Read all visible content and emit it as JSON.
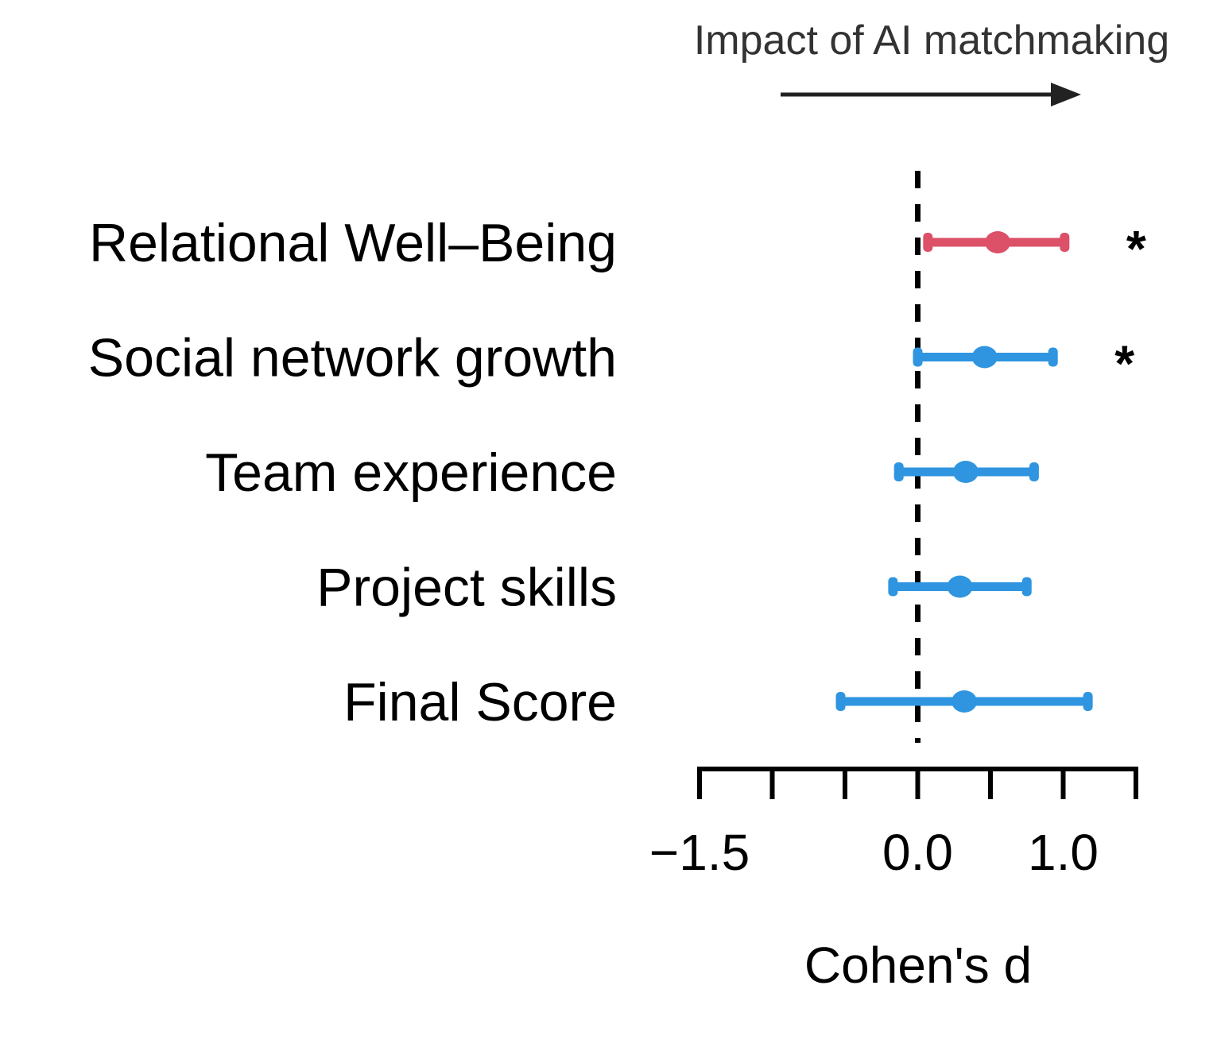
{
  "chart_data": {
    "type": "forest",
    "annotation": "Impact of AI matchmaking",
    "xlabel": "Cohen's d",
    "xlim": [
      -1.5,
      1.5
    ],
    "ticks": [
      -1.5,
      -1.0,
      -0.5,
      0.0,
      0.5,
      1.0,
      1.5
    ],
    "tick_labels": [
      {
        "value": -1.5,
        "label": "−1.5"
      },
      {
        "value": 0.0,
        "label": "0.0"
      },
      {
        "value": 1.0,
        "label": "1.0"
      }
    ],
    "reference_line": 0.0,
    "grid": false,
    "colors": {
      "significant_highlight": "#dc5068",
      "default": "#2f95e0"
    },
    "rows": [
      {
        "label": "Relational Well–Being",
        "estimate": 0.55,
        "lower": 0.07,
        "upper": 1.01,
        "significance": "*",
        "color": "#dc5068"
      },
      {
        "label": "Social network growth",
        "estimate": 0.46,
        "lower": 0.0,
        "upper": 0.93,
        "significance": "*",
        "color": "#2f95e0"
      },
      {
        "label": "Team experience",
        "estimate": 0.33,
        "lower": -0.13,
        "upper": 0.8,
        "significance": "",
        "color": "#2f95e0"
      },
      {
        "label": "Project skills",
        "estimate": 0.29,
        "lower": -0.17,
        "upper": 0.75,
        "significance": "",
        "color": "#2f95e0"
      },
      {
        "label": "Final Score",
        "estimate": 0.32,
        "lower": -0.53,
        "upper": 1.17,
        "significance": "",
        "color": "#2f95e0"
      }
    ]
  }
}
